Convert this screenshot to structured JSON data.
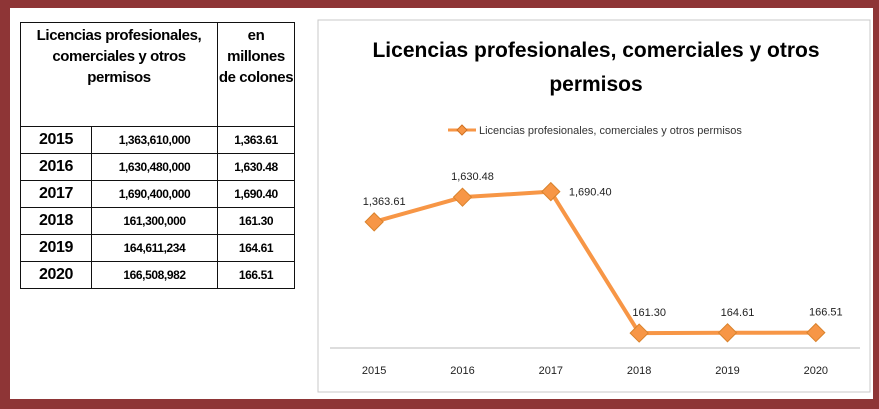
{
  "table": {
    "header": [
      "Licencias profesionales, comerciales y otros permisos",
      "en millones de colones"
    ],
    "rows": [
      [
        "2015",
        "1,363,610,000",
        "1,363.61"
      ],
      [
        "2016",
        "1,630,480,000",
        "1,630.48"
      ],
      [
        "2017",
        "1,690,400,000",
        "1,690.40"
      ],
      [
        "2018",
        "161,300,000",
        "161.30"
      ],
      [
        "2019",
        "164,611,234",
        "164.61"
      ],
      [
        "2020",
        "166,508,982",
        "166.51"
      ]
    ]
  },
  "chart_data": {
    "type": "line",
    "title": "Licencias profesionales, comerciales y otros permisos",
    "categories": [
      "2015",
      "2016",
      "2017",
      "2018",
      "2019",
      "2020"
    ],
    "series": [
      {
        "name": "Licencias profesionales, comerciales y otros permisos",
        "color": "#f79646",
        "values": [
          1363.61,
          1630.48,
          1690.4,
          161.3,
          164.61,
          166.51
        ],
        "value_labels": [
          "1,363.61",
          "1,630.48",
          "1,690.40",
          "161.30",
          "164.61",
          "166.51"
        ]
      }
    ],
    "ylim": [
      0,
      2000
    ],
    "legend": "top",
    "grid": false
  }
}
